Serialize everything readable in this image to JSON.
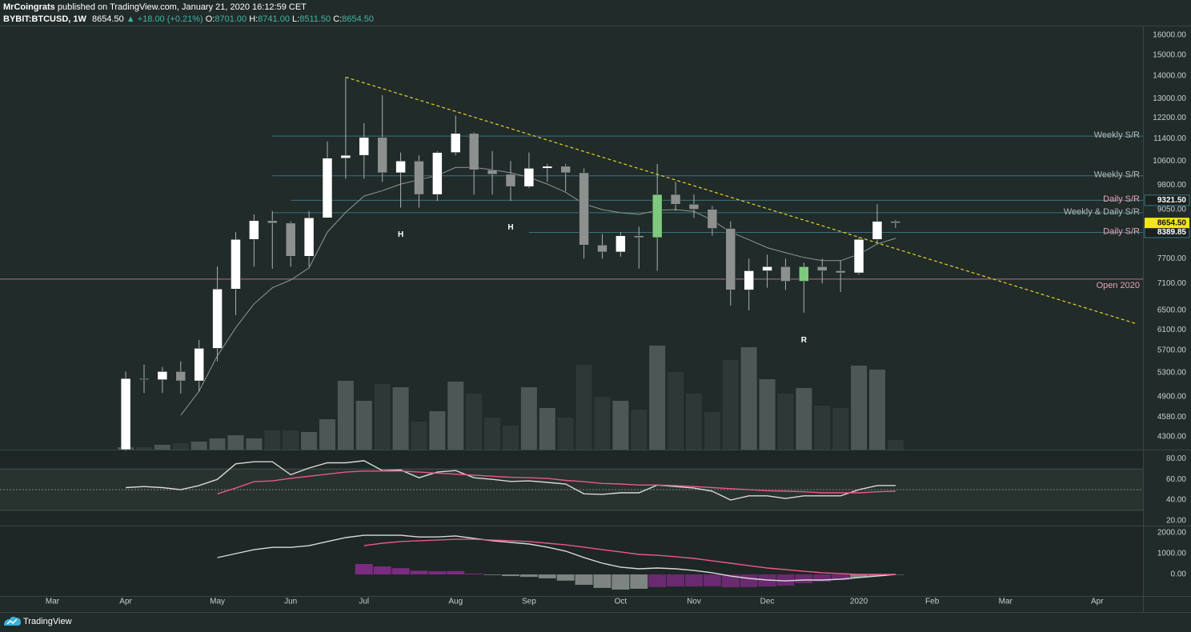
{
  "header": {
    "author": "MrCoingrats",
    "published": "published on TradingView.com, January 21, 2020 16:12:59 CET",
    "symbol": "BYBIT:BTCUSD, 1W",
    "price": "8654.50",
    "change": "▲ +18.00 (+0.21%)",
    "ohlc": [
      {
        "key": "O:",
        "value": "8701.00"
      },
      {
        "key": "H:",
        "value": "8741.00"
      },
      {
        "key": "L:",
        "value": "8511.50"
      },
      {
        "key": "C:",
        "value": "8654.50"
      }
    ]
  },
  "footer": {
    "brand": "TradingView"
  },
  "chart_data": [
    {
      "type": "candlestick",
      "x": [
        0,
        1,
        2,
        3,
        4,
        5,
        6,
        7,
        8,
        9,
        10,
        11,
        12,
        13,
        14,
        15,
        16,
        17,
        18,
        19,
        20,
        21,
        22,
        23,
        24,
        25,
        26,
        27,
        28,
        29,
        30,
        31,
        32,
        33,
        34,
        35,
        36,
        37,
        38,
        39,
        40,
        41,
        42
      ],
      "open": [
        4120,
        5200,
        5180,
        5320,
        5160,
        5740,
        6970,
        8200,
        8720,
        8650,
        7760,
        8800,
        10700,
        10800,
        11450,
        10200,
        10600,
        9500,
        10900,
        11600,
        10300,
        10150,
        9750,
        10350,
        10420,
        10200,
        8050,
        7870,
        8300,
        8250,
        9500,
        9200,
        9050,
        8500,
        6950,
        7400,
        7500,
        7150,
        7500,
        7400,
        7350,
        8200,
        8701
      ],
      "high": [
        5320,
        5440,
        5400,
        5500,
        5900,
        7500,
        8400,
        8900,
        9000,
        8700,
        9000,
        11300,
        13950,
        12000,
        13150,
        10900,
        10800,
        10950,
        12300,
        11650,
        10950,
        10600,
        10900,
        10500,
        10500,
        10350,
        8350,
        8400,
        8550,
        10500,
        9900,
        9500,
        9150,
        8700,
        7700,
        7800,
        7700,
        7600,
        7700,
        7650,
        8250,
        9200,
        8741
      ],
      "low": [
        4100,
        4960,
        4960,
        4950,
        4980,
        5500,
        6400,
        7500,
        7450,
        7500,
        7500,
        8800,
        10000,
        10000,
        9900,
        9100,
        9100,
        9300,
        10800,
        9500,
        9500,
        9300,
        9700,
        9900,
        9600,
        7700,
        7700,
        7750,
        7450,
        7400,
        9000,
        8800,
        8300,
        6600,
        6500,
        7000,
        6950,
        6450,
        7100,
        6900,
        7300,
        8100,
        8511.5
      ],
      "close": [
        5200,
        5180,
        5320,
        5160,
        5740,
        6970,
        8200,
        8720,
        8650,
        7760,
        8800,
        10700,
        10800,
        11450,
        10200,
        10600,
        9500,
        10900,
        11600,
        10300,
        10150,
        9750,
        10350,
        10420,
        10200,
        8050,
        7870,
        8300,
        8250,
        9500,
        9200,
        9050,
        8500,
        6950,
        7400,
        7500,
        7150,
        7500,
        7400,
        7350,
        8200,
        8700,
        8654.5
      ],
      "colors": [
        "#ffffff",
        "#8c9190",
        "#ffffff",
        "#8c9190",
        "#ffffff",
        "#ffffff",
        "#ffffff",
        "#ffffff",
        "#8c9190",
        "#8c9190",
        "#ffffff",
        "#ffffff",
        "#ffffff",
        "#ffffff",
        "#8c9190",
        "#ffffff",
        "#8c9190",
        "#ffffff",
        "#ffffff",
        "#8c9190",
        "#8c9190",
        "#8c9190",
        "#ffffff",
        "#ffffff",
        "#8c9190",
        "#8c9190",
        "#8c9190",
        "#ffffff",
        "#8c9190",
        "#7fc97f",
        "#8c9190",
        "#8c9190",
        "#8c9190",
        "#8c9190",
        "#ffffff",
        "#ffffff",
        "#8c9190",
        "#7fc97f",
        "#8c9190",
        "#8c9190",
        "#ffffff",
        "#ffffff",
        "#8c9190"
      ],
      "xlim": [
        -6.86,
        55.5
      ],
      "xticks": [
        {
          "value": -4,
          "label": "Mar"
        },
        {
          "value": 0,
          "label": "Apr"
        },
        {
          "value": 5,
          "label": "May"
        },
        {
          "value": 9,
          "label": "Jun"
        },
        {
          "value": 13,
          "label": "Jul"
        },
        {
          "value": 18,
          "label": "Aug"
        },
        {
          "value": 22,
          "label": "Sep"
        },
        {
          "value": 27,
          "label": "Oct"
        },
        {
          "value": 31,
          "label": "Nov"
        },
        {
          "value": 35,
          "label": "Dec"
        },
        {
          "value": 40,
          "label": "2020"
        },
        {
          "value": 44,
          "label": "Feb"
        },
        {
          "value": 48,
          "label": "Mar"
        },
        {
          "value": 53,
          "label": "Apr"
        }
      ],
      "ylim": [
        4120,
        16300
      ],
      "log": true,
      "yticks": [
        {
          "value": 16000,
          "label": "16000.00"
        },
        {
          "value": 15000,
          "label": "15000.00"
        },
        {
          "value": 14000,
          "label": "14000.00"
        },
        {
          "value": 13000,
          "label": "13000.00"
        },
        {
          "value": 12200,
          "label": "12200.00"
        },
        {
          "value": 11400,
          "label": "11400.00"
        },
        {
          "value": 10600,
          "label": "10600.00"
        },
        {
          "value": 9800,
          "label": "9800.00"
        },
        {
          "value": 9050,
          "label": "9050.00"
        },
        {
          "value": 7700,
          "label": "7700.00"
        },
        {
          "value": 7100,
          "label": "7100.00"
        },
        {
          "value": 6500,
          "label": "6500.00"
        },
        {
          "value": 6100,
          "label": "6100.00"
        },
        {
          "value": 5700,
          "label": "5700.00"
        },
        {
          "value": 5300,
          "label": "5300.00"
        },
        {
          "value": 4900,
          "label": "4900.00"
        },
        {
          "value": 4580,
          "label": "4580.00"
        },
        {
          "value": 4300,
          "label": "4300.00"
        }
      ],
      "ma": {
        "color": "#8f9896",
        "values": [
          null,
          null,
          null,
          4610,
          4990,
          5600,
          6140,
          6640,
          7000,
          7180,
          7470,
          8400,
          8960,
          9450,
          9620,
          9830,
          9970,
          10110,
          10380,
          10380,
          10300,
          10200,
          10050,
          9830,
          9570,
          9210,
          9040,
          8950,
          8900,
          9020,
          9040,
          8990,
          8730,
          8400,
          8190,
          7980,
          7850,
          7730,
          7650,
          7650,
          7810,
          8080,
          8230
        ]
      },
      "levels": [
        {
          "name": "Weekly S/R",
          "value": 11500,
          "start": 8,
          "color": "#3b7482",
          "label_color": "#b4bcba"
        },
        {
          "name": "Weekly S/R",
          "value": 10100,
          "start": 8,
          "color": "#3b7482",
          "label_color": "#b4bcba"
        },
        {
          "name": "Daily S/R",
          "value": 9321.5,
          "tag": "9321.50",
          "start": 9,
          "color": "#3b7482",
          "label_color": "#e6a3b6"
        },
        {
          "name": "Weekly & Daily S/R",
          "value": 8950,
          "start": 8,
          "color": "#3b7482",
          "label_color": "#b4bcba"
        },
        {
          "name": "Daily S/R",
          "value": 8389.85,
          "tag": "8389.85",
          "start": 22,
          "color": "#3b7482",
          "label_color": "#e6a3b6"
        },
        {
          "name": "Open 2020",
          "value": 7200,
          "color": "#b9708a",
          "label_color": "#e6a3b6",
          "label_below": true
        }
      ],
      "last_price": {
        "value": 8654.5,
        "label": "8654.50",
        "color": "#f2e51a"
      },
      "trendline": {
        "x": [
          12,
          55.15
        ],
        "y": [
          13950,
          6220
        ],
        "color": "#e3d22b"
      },
      "annotations": [
        {
          "text": "H",
          "x": 15,
          "y": 8330
        },
        {
          "text": "H",
          "x": 21,
          "y": 8530
        },
        {
          "text": "R",
          "x": 37,
          "y": 5890
        }
      ]
    },
    {
      "type": "bar",
      "values": [
        3,
        3,
        6,
        8,
        10,
        14,
        18,
        14,
        24,
        24,
        22,
        38,
        86,
        61,
        82,
        78,
        35,
        48,
        85,
        70,
        40,
        30,
        78,
        52,
        40,
        106,
        66,
        61,
        50,
        130,
        97,
        70,
        47,
        112,
        128,
        88,
        70,
        77,
        55,
        52,
        105,
        100,
        12
      ],
      "ylim": [
        0,
        140
      ],
      "up_color": "#4d5856",
      "down_color": "#2e3937"
    },
    {
      "type": "line",
      "series": [
        {
          "color": "#d8d8d8",
          "values": [
            52,
            53,
            52,
            50,
            54,
            60,
            75,
            77,
            77,
            64.5,
            71,
            76,
            76,
            78,
            68.5,
            69,
            61.5,
            67,
            68.5,
            61.5,
            60,
            58,
            58.5,
            57,
            55.5,
            46,
            45.5,
            47,
            47,
            54.5,
            53,
            51.5,
            48.5,
            40,
            44,
            44,
            41.5,
            44,
            44,
            44,
            50,
            54,
            54
          ]
        },
        {
          "color": "#e8588a",
          "values": [
            null,
            null,
            null,
            null,
            null,
            46,
            51.5,
            57.7,
            58.5,
            61,
            63,
            65,
            67,
            68,
            68,
            68,
            67,
            66,
            65,
            64,
            63,
            62,
            61.5,
            61,
            59,
            57.7,
            56,
            55.5,
            54.5,
            54.5,
            54,
            53,
            52,
            51,
            50,
            49,
            48.5,
            48,
            47,
            47,
            47,
            48,
            48.5
          ]
        }
      ],
      "ylim": [
        16,
        88
      ],
      "yticks": [
        {
          "value": 80,
          "label": "80.00"
        },
        {
          "value": 60,
          "label": "60.00"
        },
        {
          "value": 40,
          "label": "40.00"
        },
        {
          "value": 20,
          "label": "20.00"
        }
      ],
      "band": [
        30,
        70
      ],
      "midline": 50
    },
    {
      "type": "macd",
      "series": [
        {
          "color": "#d8d8d8",
          "values": [
            null,
            null,
            null,
            null,
            null,
            808,
            1000,
            1190,
            1300,
            1300,
            1380,
            1580,
            1770,
            1880,
            1880,
            1880,
            1800,
            1800,
            1850,
            1730,
            1620,
            1540,
            1460,
            1310,
            1120,
            810,
            540,
            350,
            270,
            310,
            270,
            190,
            80,
            -80,
            -190,
            -270,
            -310,
            -270,
            -270,
            -230,
            -150,
            -80,
            0
          ]
        },
        {
          "color": "#e8588a",
          "values": [
            null,
            null,
            null,
            null,
            null,
            null,
            null,
            null,
            null,
            null,
            null,
            null,
            null,
            1380,
            1500,
            1580,
            1620,
            1650,
            1690,
            1690,
            1650,
            1620,
            1580,
            1500,
            1420,
            1310,
            1190,
            1080,
            960,
            920,
            850,
            770,
            650,
            540,
            420,
            310,
            230,
            150,
            80,
            40,
            0,
            0,
            0
          ]
        }
      ],
      "histogram": {
        "values": [
          null,
          null,
          null,
          null,
          null,
          null,
          null,
          null,
          null,
          null,
          null,
          null,
          null,
          500,
          380,
          300,
          180,
          150,
          160,
          40,
          -30,
          -80,
          -120,
          -190,
          -300,
          -500,
          -650,
          -730,
          -690,
          -610,
          -580,
          -580,
          -570,
          -620,
          -610,
          -580,
          -540,
          -420,
          -350,
          -270,
          -150,
          -80,
          0
        ],
        "colors": [
          null,
          null,
          null,
          null,
          null,
          null,
          null,
          null,
          null,
          null,
          null,
          null,
          null,
          "#7a2d80",
          "#7a2d80",
          "#7a2d80",
          "#7a2d80",
          "#7a2d80",
          "#7a2d80",
          "#7a2d80",
          "#7d8482",
          "#7d8482",
          "#7d8482",
          "#7d8482",
          "#7d8482",
          "#7d8482",
          "#7d8482",
          "#7d8482",
          "#7d8482",
          "#6a2a70",
          "#6a2a70",
          "#6a2a70",
          "#6a2a70",
          "#6a2a70",
          "#6a2a70",
          "#6a2a70",
          "#6a2a70",
          "#6a2a70",
          "#6a2a70",
          "#6a2a70",
          "#7d8482",
          "#7d8482",
          "#7d8482"
        ]
      },
      "ylim": [
        -1038,
        2308
      ],
      "yticks": [
        {
          "value": 2000,
          "label": "2000.00"
        },
        {
          "value": 1000,
          "label": "1000.00"
        },
        {
          "value": 0,
          "label": "0.00"
        }
      ]
    }
  ]
}
